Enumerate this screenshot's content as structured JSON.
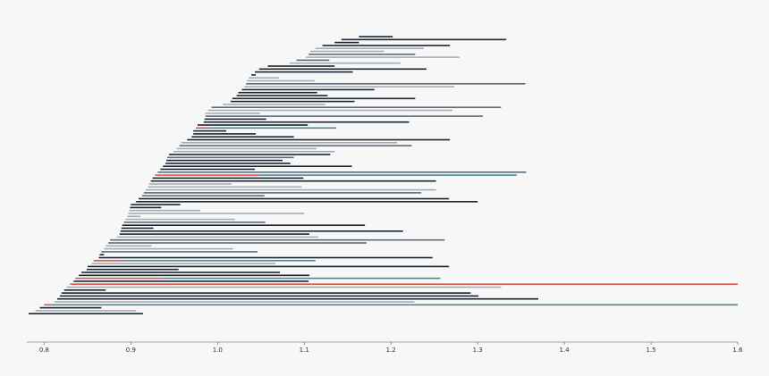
{
  "chart_data": {
    "type": "bar",
    "orientation": "horizontal",
    "title": "",
    "xlabel": "",
    "ylabel": "",
    "xlim": [
      0.78,
      1.6
    ],
    "grid": false,
    "legend": "none",
    "x_ticks": [
      0.8,
      0.9,
      1.0,
      1.1,
      1.2,
      1.3,
      1.4,
      1.5,
      1.6
    ],
    "x_tick_labels": [
      "0.8",
      "0.9",
      "1.0",
      "1.1",
      "1.2",
      "1.3",
      "1.4",
      "1.5",
      "1.6"
    ],
    "colors": {
      "dark": "#1b2530",
      "slate": "#5c6b77",
      "light": "#a5adb4",
      "teal": "#4a8a94",
      "red": "#d9534f",
      "axis": "#555555",
      "background": "#f7f7f7"
    },
    "bars": [
      {
        "start": 1.163,
        "end": 1.202,
        "tone": "dark"
      },
      {
        "start": 1.143,
        "end": 1.333,
        "tone": "dark"
      },
      {
        "start": 1.135,
        "end": 1.163,
        "tone": "dark"
      },
      {
        "start": 1.121,
        "end": 1.268,
        "tone": "dark"
      },
      {
        "start": 1.113,
        "end": 1.238,
        "tone": "light"
      },
      {
        "start": 1.107,
        "end": 1.192,
        "tone": "light"
      },
      {
        "start": 1.105,
        "end": 1.228,
        "tone": "slate"
      },
      {
        "start": 1.102,
        "end": 1.279,
        "tone": "light"
      },
      {
        "start": 1.091,
        "end": 1.129,
        "tone": "slate"
      },
      {
        "start": 1.083,
        "end": 1.211,
        "tone": "light"
      },
      {
        "start": 1.058,
        "end": 1.135,
        "tone": "dark"
      },
      {
        "start": 1.048,
        "end": 1.241,
        "tone": "dark"
      },
      {
        "start": 1.043,
        "end": 1.156,
        "tone": "dark"
      },
      {
        "start": 1.039,
        "end": 1.044,
        "tone": "dark"
      },
      {
        "start": 1.036,
        "end": 1.071,
        "tone": "light"
      },
      {
        "start": 1.034,
        "end": 1.112,
        "tone": "light"
      },
      {
        "start": 1.033,
        "end": 1.355,
        "tone": "slate"
      },
      {
        "start": 1.031,
        "end": 1.273,
        "tone": "light"
      },
      {
        "start": 1.028,
        "end": 1.181,
        "tone": "dark"
      },
      {
        "start": 1.024,
        "end": 1.115,
        "tone": "dark"
      },
      {
        "start": 1.022,
        "end": 1.127,
        "tone": "dark"
      },
      {
        "start": 1.017,
        "end": 1.228,
        "tone": "dark"
      },
      {
        "start": 1.015,
        "end": 1.158,
        "tone": "dark"
      },
      {
        "start": 1.006,
        "end": 1.124,
        "tone": "light"
      },
      {
        "start": 0.993,
        "end": 1.327,
        "tone": "slate"
      },
      {
        "start": 0.989,
        "end": 1.271,
        "tone": "light"
      },
      {
        "start": 0.986,
        "end": 1.049,
        "tone": "light"
      },
      {
        "start": 0.986,
        "end": 1.306,
        "tone": "slate"
      },
      {
        "start": 0.985,
        "end": 1.056,
        "tone": "dark"
      },
      {
        "start": 0.984,
        "end": 1.221,
        "tone": "dark"
      },
      {
        "start": 0.977,
        "end": 1.104,
        "tone": "dark"
      },
      {
        "start": 0.975,
        "end": 0.991,
        "tone": "red"
      },
      {
        "start": 0.991,
        "end": 1.137,
        "tone": "teal"
      },
      {
        "start": 0.972,
        "end": 1.01,
        "tone": "dark"
      },
      {
        "start": 0.972,
        "end": 1.044,
        "tone": "dark"
      },
      {
        "start": 0.97,
        "end": 1.088,
        "tone": "dark"
      },
      {
        "start": 0.965,
        "end": 1.268,
        "tone": "dark"
      },
      {
        "start": 0.958,
        "end": 1.207,
        "tone": "light"
      },
      {
        "start": 0.956,
        "end": 1.224,
        "tone": "slate"
      },
      {
        "start": 0.953,
        "end": 1.114,
        "tone": "light"
      },
      {
        "start": 0.949,
        "end": 1.135,
        "tone": "light"
      },
      {
        "start": 0.944,
        "end": 1.13,
        "tone": "dark"
      },
      {
        "start": 0.942,
        "end": 1.088,
        "tone": "slate"
      },
      {
        "start": 0.941,
        "end": 1.075,
        "tone": "dark"
      },
      {
        "start": 0.94,
        "end": 1.084,
        "tone": "dark"
      },
      {
        "start": 0.937,
        "end": 1.155,
        "tone": "dark"
      },
      {
        "start": 0.934,
        "end": 1.043,
        "tone": "dark"
      },
      {
        "start": 0.931,
        "end": 1.356,
        "tone": "slate"
      },
      {
        "start": 0.928,
        "end": 1.048,
        "tone": "red"
      },
      {
        "start": 1.048,
        "end": 1.345,
        "tone": "teal"
      },
      {
        "start": 0.925,
        "end": 1.099,
        "tone": "dark"
      },
      {
        "start": 0.923,
        "end": 1.252,
        "tone": "dark"
      },
      {
        "start": 0.921,
        "end": 1.016,
        "tone": "light"
      },
      {
        "start": 0.92,
        "end": 1.097,
        "tone": "light"
      },
      {
        "start": 0.917,
        "end": 1.252,
        "tone": "light"
      },
      {
        "start": 0.915,
        "end": 1.235,
        "tone": "slate"
      },
      {
        "start": 0.913,
        "end": 1.054,
        "tone": "slate"
      },
      {
        "start": 0.909,
        "end": 1.267,
        "tone": "dark"
      },
      {
        "start": 0.906,
        "end": 1.3,
        "tone": "dark"
      },
      {
        "start": 0.9,
        "end": 0.957,
        "tone": "dark"
      },
      {
        "start": 0.899,
        "end": 0.935,
        "tone": "dark"
      },
      {
        "start": 0.898,
        "end": 0.98,
        "tone": "light"
      },
      {
        "start": 0.897,
        "end": 1.1,
        "tone": "light"
      },
      {
        "start": 0.896,
        "end": 0.911,
        "tone": "light"
      },
      {
        "start": 0.894,
        "end": 1.02,
        "tone": "light"
      },
      {
        "start": 0.892,
        "end": 1.055,
        "tone": "slate"
      },
      {
        "start": 0.89,
        "end": 1.17,
        "tone": "dark"
      },
      {
        "start": 0.889,
        "end": 0.926,
        "tone": "dark"
      },
      {
        "start": 0.888,
        "end": 1.214,
        "tone": "dark"
      },
      {
        "start": 0.887,
        "end": 1.106,
        "tone": "dark"
      },
      {
        "start": 0.884,
        "end": 1.116,
        "tone": "light"
      },
      {
        "start": 0.876,
        "end": 1.262,
        "tone": "slate"
      },
      {
        "start": 0.874,
        "end": 1.172,
        "tone": "slate"
      },
      {
        "start": 0.871,
        "end": 0.924,
        "tone": "light"
      },
      {
        "start": 0.869,
        "end": 1.018,
        "tone": "light"
      },
      {
        "start": 0.866,
        "end": 1.046,
        "tone": "slate"
      },
      {
        "start": 0.864,
        "end": 0.869,
        "tone": "dark"
      },
      {
        "start": 0.863,
        "end": 1.248,
        "tone": "dark"
      },
      {
        "start": 0.857,
        "end": 0.89,
        "tone": "red"
      },
      {
        "start": 0.89,
        "end": 1.113,
        "tone": "teal"
      },
      {
        "start": 0.855,
        "end": 1.067,
        "tone": "light"
      },
      {
        "start": 0.85,
        "end": 1.267,
        "tone": "dark"
      },
      {
        "start": 0.849,
        "end": 0.955,
        "tone": "dark"
      },
      {
        "start": 0.843,
        "end": 1.072,
        "tone": "dark"
      },
      {
        "start": 0.84,
        "end": 1.106,
        "tone": "dark"
      },
      {
        "start": 0.836,
        "end": 0.938,
        "tone": "red"
      },
      {
        "start": 0.938,
        "end": 1.257,
        "tone": "teal"
      },
      {
        "start": 0.834,
        "end": 1.105,
        "tone": "dark"
      },
      {
        "start": 0.83,
        "end": 1.6,
        "tone": "red"
      },
      {
        "start": 0.826,
        "end": 1.327,
        "tone": "light"
      },
      {
        "start": 0.823,
        "end": 0.871,
        "tone": "dark"
      },
      {
        "start": 0.82,
        "end": 1.292,
        "tone": "dark"
      },
      {
        "start": 0.818,
        "end": 1.301,
        "tone": "dark"
      },
      {
        "start": 0.815,
        "end": 1.37,
        "tone": "dark"
      },
      {
        "start": 0.812,
        "end": 1.227,
        "tone": "light"
      },
      {
        "start": 0.8,
        "end": 0.808,
        "tone": "red"
      },
      {
        "start": 0.808,
        "end": 1.6,
        "tone": "teal"
      },
      {
        "start": 0.795,
        "end": 0.866,
        "tone": "dark"
      },
      {
        "start": 0.79,
        "end": 0.906,
        "tone": "light"
      },
      {
        "start": 0.782,
        "end": 0.914,
        "tone": "dark"
      }
    ]
  }
}
